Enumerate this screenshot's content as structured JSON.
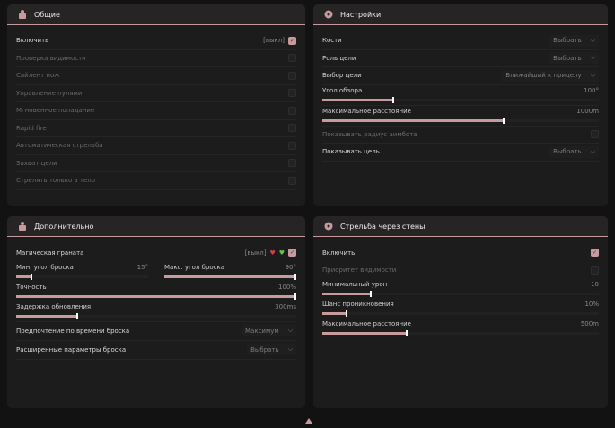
{
  "colors": {
    "accent": "#c79a9e",
    "panel": "#1c1c1d",
    "background": "#121212"
  },
  "general": {
    "title": "Общие",
    "icon": "character-icon",
    "enable": {
      "label": "Включить",
      "state": "[выкл]",
      "checked": true
    },
    "items": [
      {
        "label": "Проверка видимости",
        "checked": false
      },
      {
        "label": "Сайлент нож",
        "checked": false
      },
      {
        "label": "Управление пулями",
        "checked": false
      },
      {
        "label": "Мгновенное попадание",
        "checked": false
      },
      {
        "label": "Rapid fire",
        "checked": false
      },
      {
        "label": "Автоматическая стрельба",
        "checked": false
      },
      {
        "label": "Захват цели",
        "checked": false
      },
      {
        "label": "Стрелять только в тело",
        "checked": false
      }
    ]
  },
  "settings": {
    "title": "Настройки",
    "icon": "gear-icon",
    "bones": {
      "label": "Кости",
      "value": "Выбрать"
    },
    "target_role": {
      "label": "Роль цели",
      "value": "Выбрать"
    },
    "target_select": {
      "label": "Выбор цели",
      "value": "Ближайший к прицелу"
    },
    "fov": {
      "label": "Угол обзора",
      "value": "100°",
      "fraction": 0.26
    },
    "max_dist": {
      "label": "Максимальное расстояние",
      "value": "1000m",
      "fraction": 0.66
    },
    "show_radius": {
      "label": "Показывать радиус аимбота",
      "checked": false
    },
    "show_target": {
      "label": "Показывать цель",
      "value": "Выбрать"
    }
  },
  "advanced": {
    "title": "Дополнительно",
    "icon": "character-icon",
    "grenade": {
      "label": "Магическая граната",
      "state": "[выкл]",
      "checked": true
    },
    "min_angle": {
      "label": "Мин. угол броска",
      "value": "15°",
      "fraction": 0.12
    },
    "max_angle": {
      "label": "Макс. угол броска",
      "value": "90°",
      "fraction": 1.0
    },
    "accuracy": {
      "label": "Точность",
      "value": "100%",
      "fraction": 1.0
    },
    "delay": {
      "label": "Задержка обновления",
      "value": "300ms",
      "fraction": 0.22
    },
    "time_pref": {
      "label": "Предпочтение по времени броска",
      "value": "Максимум"
    },
    "ext_params": {
      "label": "Расширенные параметры броска",
      "value": "Выбрать"
    }
  },
  "wallbang": {
    "title": "Стрельба через стены",
    "icon": "gear-icon",
    "enable": {
      "label": "Включить",
      "checked": true
    },
    "priority": {
      "label": "Приоритет видимости",
      "checked": false
    },
    "min_damage": {
      "label": "Минимальный урон",
      "value": "10",
      "fraction": 0.18
    },
    "pen_chance": {
      "label": "Шанс проникновения",
      "value": "10%",
      "fraction": 0.09
    },
    "max_dist": {
      "label": "Максимальное расстояние",
      "value": "500m",
      "fraction": 0.31
    }
  }
}
